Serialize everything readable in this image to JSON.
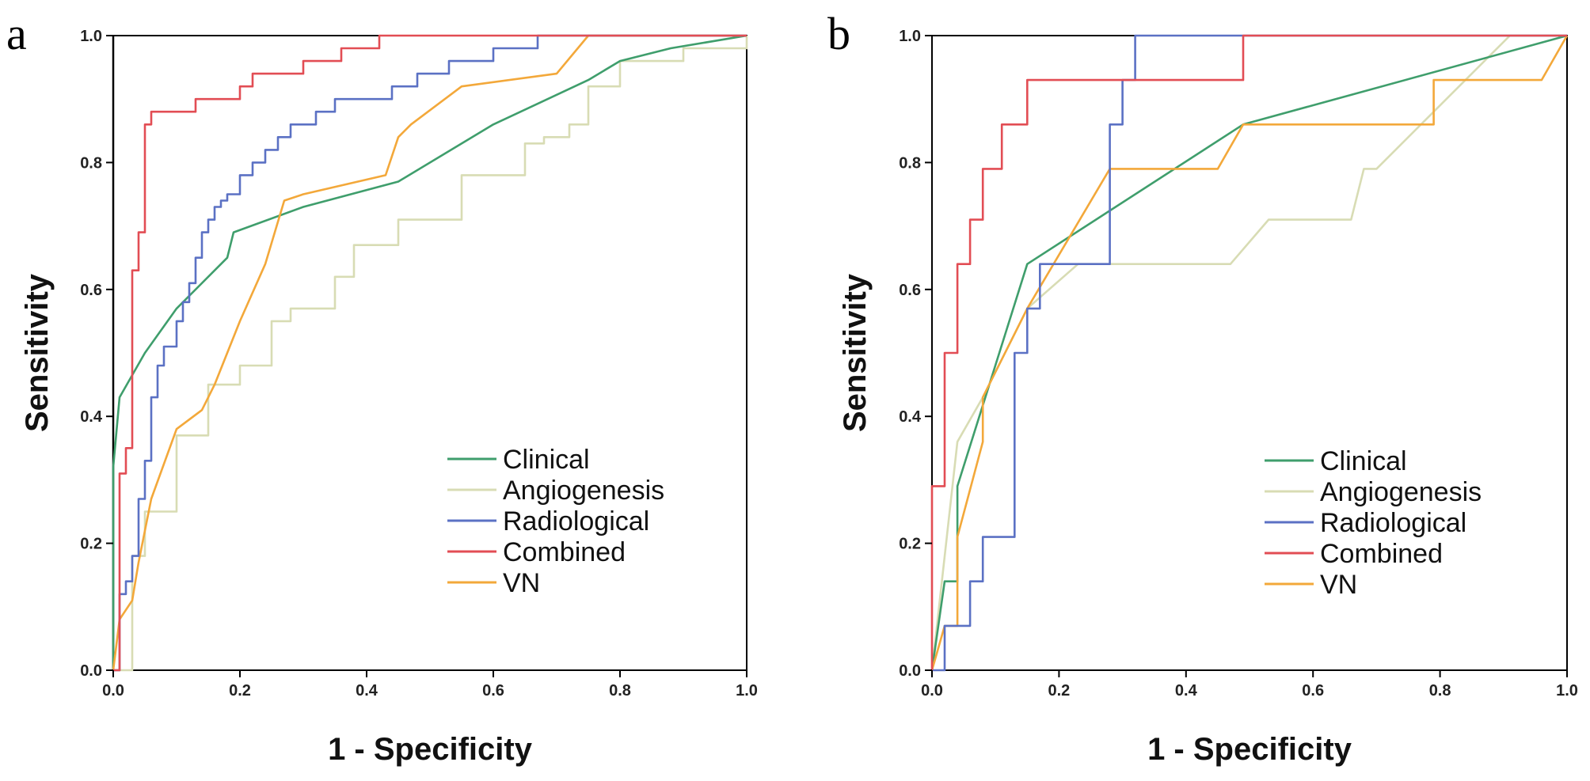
{
  "colors": {
    "Clinical": "#3f9e6c",
    "Angiogenesis": "#d8dcb4",
    "Radiological": "#5b71c4",
    "Combined": "#e24d54",
    "VN": "#f3a83a"
  },
  "chart_data": [
    {
      "panel": "a",
      "type": "line",
      "xlabel": "1 - Specificity",
      "ylabel": "Sensitivity",
      "xlim": [
        0,
        1
      ],
      "ylim": [
        0,
        1
      ],
      "xticks": [
        "0.0",
        "0.2",
        "0.4",
        "0.6",
        "0.8",
        "1.0"
      ],
      "yticks": [
        "0.0",
        "0.2",
        "0.4",
        "0.6",
        "0.8",
        "1.0"
      ],
      "legend_position": "bottom-right",
      "series": [
        {
          "name": "Clinical",
          "x": [
            0,
            0,
            0.01,
            0.05,
            0.1,
            0.18,
            0.19,
            0.3,
            0.45,
            0.6,
            0.75,
            0.8,
            0.88,
            1.0
          ],
          "y": [
            0,
            0.32,
            0.43,
            0.5,
            0.57,
            0.65,
            0.69,
            0.73,
            0.77,
            0.86,
            0.93,
            0.96,
            0.98,
            1.0
          ]
        },
        {
          "name": "Angiogenesis",
          "x": [
            0,
            0.02,
            0.03,
            0.03,
            0.05,
            0.1,
            0.15,
            0.2,
            0.25,
            0.28,
            0.35,
            0.38,
            0.45,
            0.55,
            0.65,
            0.68,
            0.7,
            0.72,
            0.73,
            0.75,
            0.8,
            0.9,
            1.0
          ],
          "y": [
            0,
            0,
            0.03,
            0.18,
            0.25,
            0.37,
            0.45,
            0.48,
            0.55,
            0.57,
            0.62,
            0.67,
            0.71,
            0.78,
            0.83,
            0.84,
            0.84,
            0.86,
            0.86,
            0.92,
            0.96,
            0.98,
            1.0
          ],
          "step": true
        },
        {
          "name": "Radiological",
          "x": [
            0,
            0.01,
            0.02,
            0.03,
            0.04,
            0.05,
            0.06,
            0.07,
            0.08,
            0.1,
            0.11,
            0.12,
            0.13,
            0.14,
            0.15,
            0.16,
            0.17,
            0.18,
            0.2,
            0.22,
            0.24,
            0.26,
            0.28,
            0.3,
            0.32,
            0.35,
            0.37,
            0.44,
            0.48,
            0.53,
            0.6,
            0.67,
            0.7,
            1.0
          ],
          "y": [
            0,
            0.12,
            0.14,
            0.18,
            0.27,
            0.33,
            0.43,
            0.48,
            0.51,
            0.55,
            0.58,
            0.61,
            0.65,
            0.69,
            0.71,
            0.73,
            0.74,
            0.75,
            0.78,
            0.8,
            0.82,
            0.84,
            0.86,
            0.86,
            0.88,
            0.9,
            0.9,
            0.92,
            0.94,
            0.96,
            0.98,
            1.0,
            1.0,
            1.0
          ],
          "step": true
        },
        {
          "name": "Combined",
          "x": [
            0,
            0.01,
            0.02,
            0.03,
            0.04,
            0.05,
            0.06,
            0.07,
            0.08,
            0.1,
            0.13,
            0.16,
            0.2,
            0.22,
            0.26,
            0.3,
            0.36,
            0.42,
            1.0
          ],
          "y": [
            0,
            0.31,
            0.35,
            0.63,
            0.69,
            0.86,
            0.88,
            0.88,
            0.88,
            0.88,
            0.9,
            0.9,
            0.92,
            0.94,
            0.94,
            0.96,
            0.98,
            1.0,
            1.0
          ],
          "step": true
        },
        {
          "name": "VN",
          "x": [
            0,
            0.01,
            0.03,
            0.04,
            0.06,
            0.1,
            0.14,
            0.16,
            0.2,
            0.24,
            0.27,
            0.3,
            0.43,
            0.45,
            0.47,
            0.55,
            0.7,
            0.75,
            1.0
          ],
          "y": [
            0,
            0.08,
            0.11,
            0.17,
            0.27,
            0.38,
            0.41,
            0.45,
            0.55,
            0.64,
            0.74,
            0.75,
            0.78,
            0.84,
            0.86,
            0.92,
            0.94,
            1.0,
            1.0
          ]
        }
      ]
    },
    {
      "panel": "b",
      "type": "line",
      "xlabel": "1 - Specificity",
      "ylabel": "Sensitivity",
      "xlim": [
        0,
        1
      ],
      "ylim": [
        0,
        1
      ],
      "xticks": [
        "0.0",
        "0.2",
        "0.4",
        "0.6",
        "0.8",
        "1.0"
      ],
      "yticks": [
        "0.0",
        "0.2",
        "0.4",
        "0.6",
        "0.8",
        "1.0"
      ],
      "legend_position": "bottom-right",
      "series": [
        {
          "name": "Clinical",
          "x": [
            0,
            0.02,
            0.04,
            0.04,
            0.15,
            0.49,
            1.0
          ],
          "y": [
            0,
            0.14,
            0.14,
            0.29,
            0.64,
            0.86,
            1.0
          ]
        },
        {
          "name": "Angiogenesis",
          "x": [
            0,
            0.04,
            0.08,
            0.15,
            0.23,
            0.47,
            0.53,
            0.66,
            0.68,
            0.7,
            0.91,
            1.0
          ],
          "y": [
            0,
            0.36,
            0.43,
            0.57,
            0.64,
            0.64,
            0.71,
            0.71,
            0.79,
            0.79,
            1.0,
            1.0
          ]
        },
        {
          "name": "Radiological",
          "x": [
            0,
            0.02,
            0.02,
            0.06,
            0.06,
            0.08,
            0.08,
            0.11,
            0.11,
            0.13,
            0.13,
            0.15,
            0.15,
            0.17,
            0.17,
            0.26,
            0.28,
            0.28,
            0.3,
            0.3,
            0.32,
            0.32,
            1.0
          ],
          "y": [
            0,
            0,
            0.07,
            0.07,
            0.14,
            0.14,
            0.21,
            0.21,
            0.21,
            0.21,
            0.5,
            0.5,
            0.57,
            0.57,
            0.64,
            0.64,
            0.71,
            0.86,
            0.86,
            0.93,
            0.93,
            1.0,
            1.0
          ],
          "step": true
        },
        {
          "name": "Combined",
          "x": [
            0,
            0,
            0.02,
            0.02,
            0.04,
            0.04,
            0.06,
            0.06,
            0.08,
            0.08,
            0.09,
            0.09,
            0.11,
            0.11,
            0.15,
            0.15,
            0.49,
            0.49,
            1.0
          ],
          "y": [
            0,
            0.29,
            0.29,
            0.5,
            0.5,
            0.64,
            0.64,
            0.71,
            0.71,
            0.79,
            0.79,
            0.79,
            0.79,
            0.86,
            0.86,
            0.93,
            0.93,
            1.0,
            1.0
          ],
          "step": true
        },
        {
          "name": "VN",
          "x": [
            0,
            0.02,
            0.04,
            0.04,
            0.08,
            0.08,
            0.15,
            0.28,
            0.38,
            0.45,
            0.49,
            0.79,
            0.79,
            0.96,
            1.0
          ],
          "y": [
            0,
            0.07,
            0.07,
            0.21,
            0.36,
            0.43,
            0.57,
            0.79,
            0.79,
            0.79,
            0.86,
            0.86,
            0.93,
            0.93,
            1.0
          ]
        }
      ]
    }
  ]
}
